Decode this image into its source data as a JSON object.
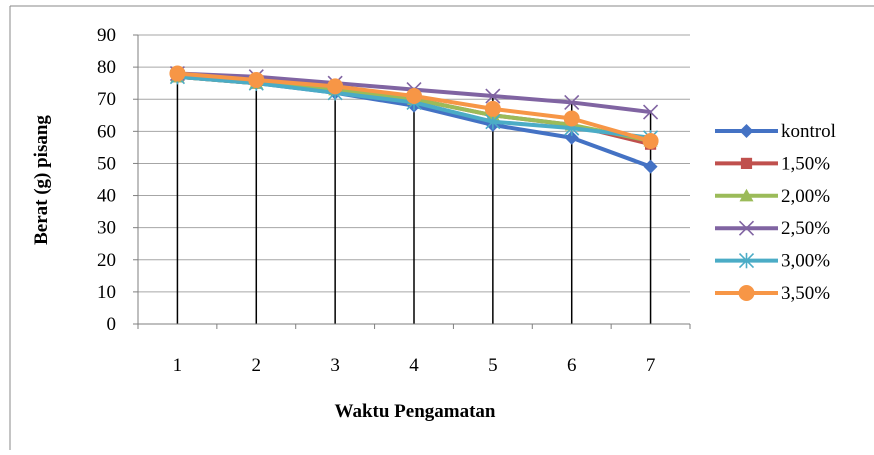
{
  "chart_data": {
    "type": "line",
    "title": "",
    "xlabel": "Waktu Pengamatan",
    "ylabel": "Berat (g) pisang",
    "categories": [
      "1",
      "2",
      "3",
      "4",
      "5",
      "6",
      "7"
    ],
    "ylim": [
      0,
      90
    ],
    "yticks": [
      "0",
      "10",
      "20",
      "30",
      "40",
      "50",
      "60",
      "70",
      "80",
      "90"
    ],
    "grid": true,
    "drop_lines": true,
    "legend_position": "right",
    "series": [
      {
        "name": "kontrol",
        "color": "#4472C4",
        "marker": "diamond",
        "values": [
          77,
          75,
          72,
          68,
          62,
          58,
          49
        ]
      },
      {
        "name": "1,50%",
        "color": "#C0504D",
        "marker": "square",
        "values": [
          77,
          75,
          73,
          70,
          65,
          62,
          56
        ]
      },
      {
        "name": "2,00%",
        "color": "#9BBB59",
        "marker": "triangle",
        "values": [
          77,
          75,
          73,
          70,
          65,
          62,
          57
        ]
      },
      {
        "name": "2,50%",
        "color": "#8064A2",
        "marker": "x",
        "values": [
          78,
          77,
          75,
          73,
          71,
          69,
          66
        ]
      },
      {
        "name": "3,00%",
        "color": "#4BACC6",
        "marker": "star",
        "values": [
          77,
          75,
          72,
          69,
          63,
          61,
          58
        ]
      },
      {
        "name": "3,50%",
        "color": "#F79646",
        "marker": "circle",
        "values": [
          78,
          76,
          74,
          71,
          67,
          64,
          57
        ]
      }
    ]
  }
}
